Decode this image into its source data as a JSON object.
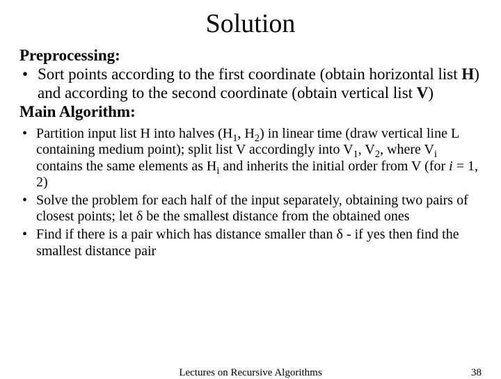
{
  "title": "Solution",
  "section1_label": "Preprocessing:",
  "bullet1_pre": "Sort points according to the first coordinate (obtain horizontal list ",
  "bullet1_H": "H",
  "bullet1_mid": ") and according to the second coordinate (obtain vertical list ",
  "bullet1_V": "V",
  "bullet1_end": ")",
  "section2_label": "Main Algorithm:",
  "b2a_1": "Partition input list H into halves (H",
  "b2a_s1": "1",
  "b2a_2": ", H",
  "b2a_s2": "2",
  "b2a_3": ") in linear time (draw vertical line L containing medium point); split list V accordingly into V",
  "b2a_s3": "1",
  "b2a_4": ", V",
  "b2a_s4": "2",
  "b2a_5": ", where V",
  "b2a_s5": "i",
  "b2a_6": " contains the same elements as H",
  "b2a_s6": "i",
  "b2a_7": " and inherits the initial order from V (for ",
  "b2a_i": "i",
  "b2a_8": " = 1, 2)",
  "b2b": "Solve the problem for each half of the input separately, obtaining two pairs of closest points; let δ be the smallest distance from the obtained ones",
  "b2c": "Find if there is a pair which has distance smaller than δ - if yes then find the smallest distance pair",
  "footer_center": "Lectures on Recursive Algorithms",
  "footer_page": "38",
  "bullet_glyph": "•"
}
